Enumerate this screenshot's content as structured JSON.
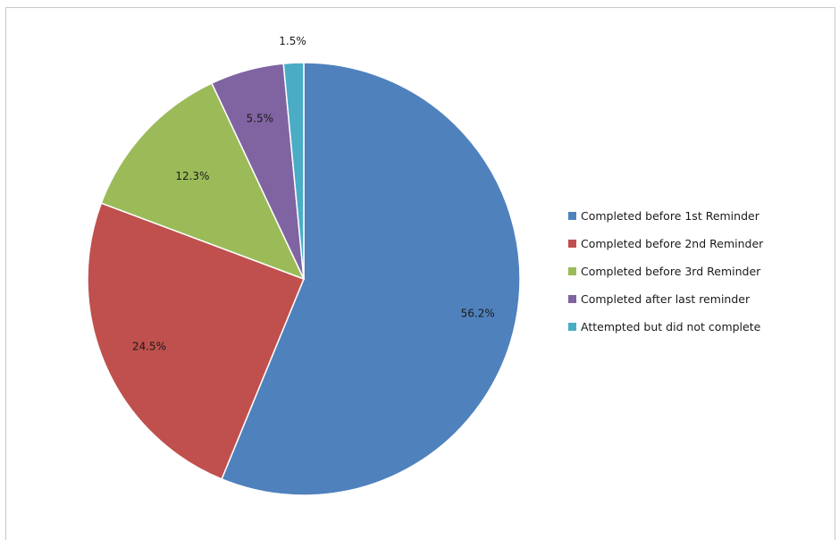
{
  "chart_data": {
    "type": "pie",
    "title": "",
    "categories": [
      "Completed before 1st Reminder",
      "Completed before 2nd Reminder",
      "Completed before 3rd Reminder",
      "Completed after last reminder",
      "Attempted but did not complete"
    ],
    "values": [
      56.2,
      24.5,
      12.3,
      5.5,
      1.5
    ],
    "data_labels": [
      "56.2%",
      "24.5%",
      "12.3%",
      "5.5%",
      "1.5%"
    ],
    "colors": [
      "#4f81bd",
      "#c0504d",
      "#9bbb59",
      "#8064a2",
      "#4bacc6"
    ],
    "start_angle": "12 o'clock",
    "direction": "clockwise",
    "legend_position": "right"
  }
}
